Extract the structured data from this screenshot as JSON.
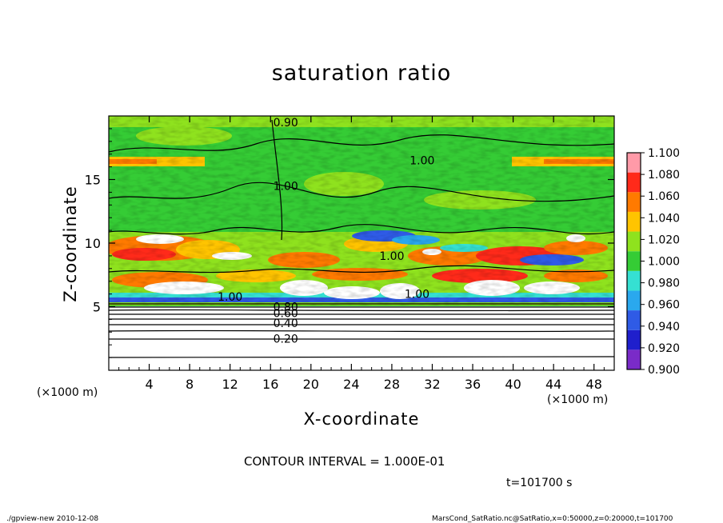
{
  "header": {
    "title": "saturation ratio"
  },
  "axes": {
    "ylabel": "Z-coordinate",
    "xlabel": "X-coordinate",
    "xunit_left": "(×1000 m)",
    "xunit_right": "(×1000 m)"
  },
  "footer": {
    "contour_interval": "CONTOUR INTERVAL = 1.000E-01",
    "time": "t=101700 s",
    "left": "./gpview-new  2010-12-08",
    "right": "MarsCond_SatRatio.nc@SatRatio,x=0:50000,z=0:20000,t=101700"
  },
  "chart_data": {
    "type": "heatmap",
    "title": "saturation ratio",
    "xlabel": "X-coordinate",
    "ylabel": "Z-coordinate",
    "x_unit": "(×1000 m)",
    "xlim": [
      0,
      50
    ],
    "ylim": [
      0,
      20
    ],
    "x_ticks": [
      4,
      8,
      12,
      16,
      20,
      24,
      28,
      32,
      36,
      40,
      44,
      48
    ],
    "y_ticks": [
      5,
      10,
      15
    ],
    "colorbar": {
      "levels": [
        0.9,
        0.92,
        0.94,
        0.96,
        0.98,
        1.0,
        1.02,
        1.04,
        1.06,
        1.08,
        1.1
      ],
      "tick_labels": [
        "0.900",
        "0.920",
        "0.940",
        "0.960",
        "0.980",
        "1.000",
        "1.020",
        "1.040",
        "1.060",
        "1.080",
        "1.100"
      ],
      "colors": [
        "#7a2bc8",
        "#1f1fcc",
        "#2f5be6",
        "#2aa8ee",
        "#35e0d2",
        "#35cc35",
        "#8fe21e",
        "#ffc400",
        "#ff7a00",
        "#ff2a1a",
        "#ff9aa8"
      ]
    },
    "contour_interval": 0.1,
    "contour_labels": [
      {
        "text": "0.20",
        "x": 17.5,
        "z": 2.5
      },
      {
        "text": "0.40",
        "x": 17.5,
        "z": 3.7
      },
      {
        "text": "0.60",
        "x": 17.5,
        "z": 4.5
      },
      {
        "text": "0.80",
        "x": 17.5,
        "z": 5.0
      },
      {
        "text": "1.00",
        "x": 12.0,
        "z": 5.8
      },
      {
        "text": "1.00",
        "x": 30.5,
        "z": 6.0
      },
      {
        "text": "1.00",
        "x": 28.0,
        "z": 9.0
      },
      {
        "text": "1.00",
        "x": 17.5,
        "z": 14.5
      },
      {
        "text": "1.00",
        "x": 31.0,
        "z": 16.5
      },
      {
        "text": "0.90",
        "x": 17.5,
        "z": 19.5
      }
    ],
    "time": "t=101700 s"
  }
}
